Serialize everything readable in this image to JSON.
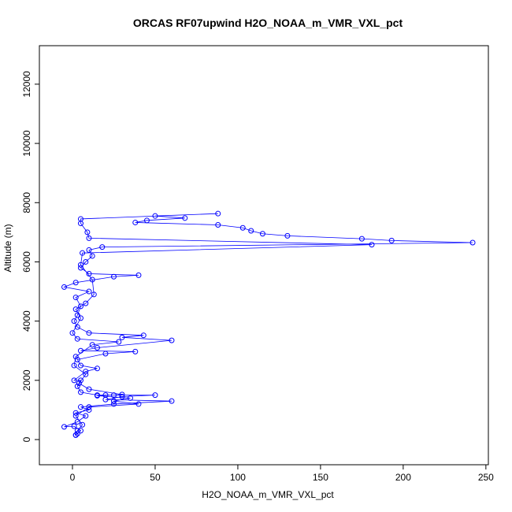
{
  "chart_data": {
    "type": "line",
    "title": "ORCAS RF07upwind H2O_NOAA_m_VMR_VXL_pct",
    "x_label": "H2O_NOAA_m_VMR_VXL_pct",
    "y_label": "Altitude (m)",
    "color": "#0000ff",
    "markers": true,
    "xlim": [
      -20,
      251.5
    ],
    "ylim": [
      -850,
      13300
    ],
    "xticks": [
      0,
      50,
      100,
      150,
      200,
      250
    ],
    "yticks": [
      0,
      2000,
      4000,
      6000,
      8000,
      10000,
      12000
    ],
    "x": [
      2,
      3,
      5,
      1,
      -5,
      3,
      8,
      2,
      10,
      5,
      25,
      60,
      20,
      30,
      50,
      20,
      15,
      5,
      3,
      5,
      1,
      8,
      15,
      5,
      3,
      20,
      38,
      5,
      15,
      60,
      30,
      43,
      10,
      3,
      1,
      3,
      5,
      2,
      10,
      -5,
      2,
      25,
      40,
      10,
      5,
      8,
      12,
      10,
      18,
      242,
      193,
      175,
      130,
      115,
      108,
      103,
      88,
      38,
      45,
      68,
      50,
      88,
      5,
      5,
      9,
      10,
      181,
      6,
      5,
      12,
      13,
      8,
      2,
      5,
      0,
      3,
      28,
      12,
      2,
      1,
      8,
      4,
      10,
      30,
      25,
      15,
      35,
      25,
      40,
      10,
      2,
      6,
      3,
      2
    ],
    "y": [
      150,
      200,
      300,
      450,
      430,
      600,
      800,
      900,
      1000,
      1100,
      1200,
      1300,
      1350,
      1450,
      1500,
      1500,
      1500,
      1600,
      1800,
      2000,
      2000,
      2300,
      2400,
      2500,
      2700,
      2900,
      2970,
      3000,
      3100,
      3350,
      3450,
      3520,
      3600,
      3800,
      4000,
      4200,
      4500,
      4800,
      5000,
      5150,
      5300,
      5500,
      5550,
      5600,
      5800,
      6000,
      6200,
      6400,
      6500,
      6650,
      6720,
      6780,
      6880,
      6950,
      7050,
      7150,
      7250,
      7330,
      7400,
      7480,
      7550,
      7630,
      7450,
      7300,
      7000,
      6800,
      6580,
      6300,
      5900,
      5400,
      4900,
      4600,
      4400,
      4100,
      3600,
      3400,
      3300,
      3200,
      2800,
      2500,
      2200,
      1900,
      1700,
      1520,
      1500,
      1480,
      1400,
      1300,
      1200,
      1100,
      800,
      500,
      300,
      150
    ]
  }
}
